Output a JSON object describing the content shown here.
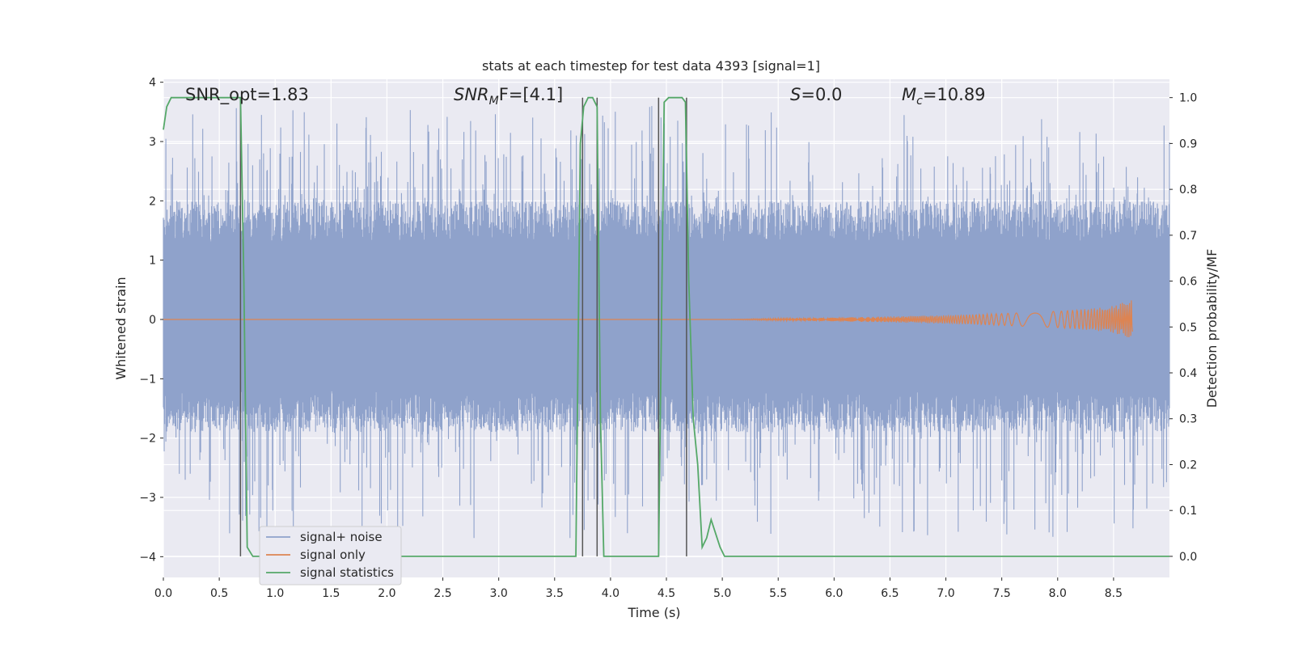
{
  "chart_data": {
    "type": "line",
    "title": "stats at each timestep for test data 4393 [signal=1]",
    "xlabel": "Time (s)",
    "ylabel_left": "Whitened strain",
    "ylabel_right": "Detection probability/MF",
    "xlim": [
      0,
      9.0
    ],
    "ylim_left": [
      -4.35,
      4.05
    ],
    "ylim_right": [
      -0.046,
      1.04
    ],
    "x_ticks": [
      0.0,
      0.5,
      1.0,
      1.5,
      2.0,
      2.5,
      3.0,
      3.5,
      4.0,
      4.5,
      5.0,
      5.5,
      6.0,
      6.5,
      7.0,
      7.5,
      8.0,
      8.5
    ],
    "x_tick_labels": [
      "0.0",
      "0.5",
      "1.0",
      "1.5",
      "2.0",
      "2.5",
      "3.0",
      "3.5",
      "4.0",
      "4.5",
      "5.0",
      "5.5",
      "6.0",
      "6.5",
      "7.0",
      "7.5",
      "8.0",
      "8.5"
    ],
    "y_left_ticks": [
      4,
      3,
      2,
      1,
      0,
      -1,
      -2,
      -3,
      -4
    ],
    "y_left_tick_labels": [
      "4",
      "3",
      "2",
      "1",
      "0",
      "−1",
      "−2",
      "−3",
      "−4"
    ],
    "y_right_ticks": [
      1.0,
      0.9,
      0.8,
      0.7,
      0.6,
      0.5,
      0.4,
      0.3,
      0.2,
      0.1,
      0.0
    ],
    "y_right_tick_labels": [
      "1.0",
      "0.9",
      "0.8",
      "0.7",
      "0.6",
      "0.5",
      "0.4",
      "0.3",
      "0.2",
      "0.1",
      "0.0"
    ],
    "grid": true,
    "legend_position": "lower-left",
    "annotations": {
      "snr_opt": "SNR_opt=1.83",
      "snr_mf_base": "SNR",
      "snr_mf_sub": "M",
      "snr_mf_rest": "F=[4.1]",
      "s_var": "S",
      "s_rest": "=0.0",
      "mc_base": "M",
      "mc_sub": "c",
      "mc_rest": "=10.89"
    },
    "series": [
      {
        "name": "signal+ noise",
        "axis": "left",
        "color": "#8fa2cb",
        "style": "dense noise band",
        "band_typical": [
          -1.9,
          2.0
        ],
        "spike_range": [
          -3.7,
          3.6
        ],
        "x_range": [
          0.0,
          9.0
        ]
      },
      {
        "name": "signal only",
        "axis": "left",
        "color": "#dd8452",
        "style": "chirp",
        "x_range": [
          0.0,
          8.67
        ],
        "envelope": [
          [
            0,
            0.0
          ],
          [
            5.0,
            0.0
          ],
          [
            5.5,
            0.02
          ],
          [
            6.0,
            0.03
          ],
          [
            6.5,
            0.05
          ],
          [
            7.0,
            0.07
          ],
          [
            7.5,
            0.1
          ],
          [
            8.0,
            0.14
          ],
          [
            8.3,
            0.18
          ],
          [
            8.5,
            0.23
          ],
          [
            8.6,
            0.3
          ],
          [
            8.67,
            0.35
          ]
        ]
      },
      {
        "name": "signal statistics",
        "axis": "right",
        "color": "#55a868",
        "x": [
          0.0,
          0.03,
          0.07,
          0.12,
          0.2,
          0.3,
          0.4,
          0.5,
          0.6,
          0.66,
          0.69,
          0.72,
          0.75,
          0.8,
          0.9,
          1.0,
          2.0,
          3.0,
          3.5,
          3.69,
          3.73,
          3.76,
          3.8,
          3.84,
          3.88,
          3.91,
          3.94,
          4.0,
          4.2,
          4.4,
          4.43,
          4.48,
          4.52,
          4.56,
          4.6,
          4.64,
          4.67,
          4.7,
          4.74,
          4.78,
          4.82,
          4.86,
          4.9,
          4.94,
          4.98,
          5.02,
          5.08,
          5.2,
          6.0,
          6.5,
          7.0,
          8.0,
          9.0
        ],
        "values": [
          0.93,
          0.98,
          1.0,
          1.0,
          1.0,
          1.0,
          1.0,
          1.0,
          1.0,
          1.0,
          1.0,
          0.6,
          0.02,
          0.0,
          0.0,
          0.0,
          0.0,
          0.0,
          0.0,
          0.0,
          0.9,
          0.98,
          1.0,
          1.0,
          0.98,
          0.3,
          0.0,
          0.0,
          0.0,
          0.0,
          0.0,
          0.99,
          1.0,
          1.0,
          1.0,
          1.0,
          0.99,
          0.6,
          0.3,
          0.2,
          0.02,
          0.04,
          0.08,
          0.05,
          0.02,
          0.0,
          0.0,
          0.0,
          0.0,
          0.0,
          0.0,
          0.0,
          0.0
        ]
      }
    ],
    "vertical_lines": {
      "color": "#555555",
      "x": [
        0.69,
        3.75,
        3.88,
        4.43,
        4.68
      ]
    }
  }
}
